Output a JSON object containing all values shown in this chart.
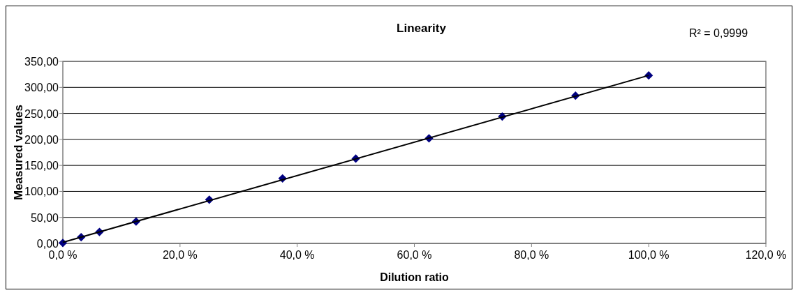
{
  "chart_data": {
    "type": "scatter",
    "title": "Linearity",
    "xlabel": "Dilution ratio",
    "ylabel": "Measured values",
    "annotations": [
      "R² = 0,9999"
    ],
    "x": [
      0,
      3.125,
      6.25,
      12.5,
      25,
      37.5,
      50,
      62.5,
      75,
      87.5,
      100
    ],
    "series": [
      {
        "color": "#000080",
        "marker": "diamond",
        "values": [
          1,
          12,
          22,
          42,
          84,
          125,
          163,
          202,
          244,
          284,
          323
        ]
      },
      {
        "type": "line",
        "color": "#000000",
        "marker": "none",
        "x": [
          0,
          100
        ],
        "values": [
          2,
          323
        ]
      }
    ],
    "grid": "y",
    "xlim": [
      0,
      120
    ],
    "xticks": [
      {
        "value": 0,
        "label": "0,0 %"
      },
      {
        "value": 20,
        "label": "20,0 %"
      },
      {
        "value": 40,
        "label": "40,0 %"
      },
      {
        "value": 60,
        "label": "60,0 %"
      },
      {
        "value": 80,
        "label": "80,0 %"
      },
      {
        "value": 100,
        "label": "100,0 %"
      },
      {
        "value": 120,
        "label": "120,0 %"
      }
    ],
    "ylim": [
      0,
      350
    ],
    "yticks": [
      {
        "value": 0,
        "label": "0,00"
      },
      {
        "value": 50,
        "label": "50,00"
      },
      {
        "value": 100,
        "label": "100,00"
      },
      {
        "value": 150,
        "label": "150,00"
      },
      {
        "value": 200,
        "label": "200,00"
      },
      {
        "value": 250,
        "label": "250,00"
      },
      {
        "value": 300,
        "label": "300,00"
      },
      {
        "value": 350,
        "label": "350,00"
      }
    ]
  }
}
